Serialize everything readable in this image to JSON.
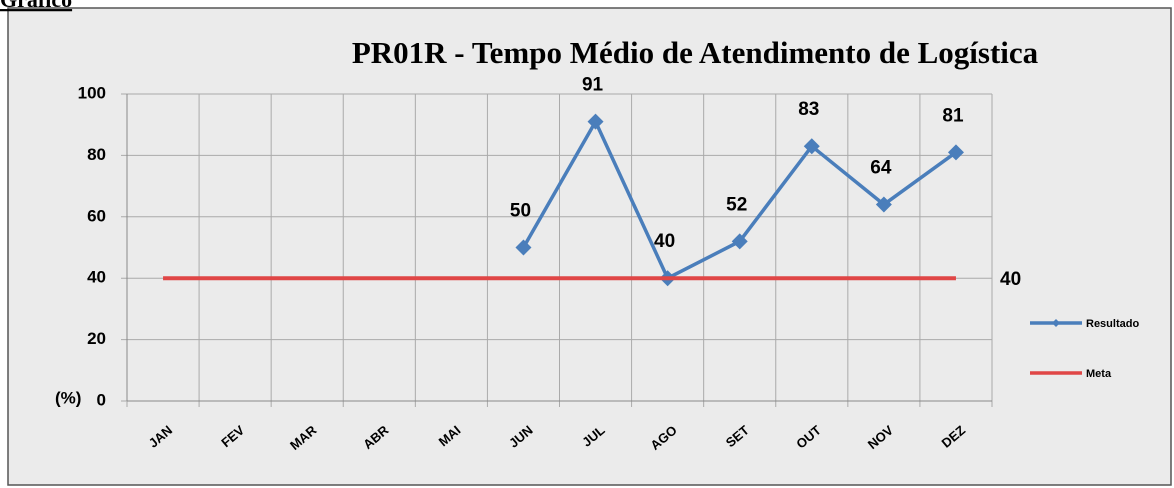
{
  "page_label": "Gráfico",
  "chart_data": {
    "type": "line",
    "title": "PR01R - Tempo Médio  de Atendimento de Logística",
    "y_label": "(%)",
    "categories": [
      "JAN",
      "FEV",
      "MAR",
      "ABR",
      "MAI",
      "JUN",
      "JUL",
      "AGO",
      "SET",
      "OUT",
      "NOV",
      "DEZ"
    ],
    "series": [
      {
        "name": "Resultado",
        "color": "#4a7ebb",
        "values": [
          null,
          null,
          null,
          null,
          null,
          50,
          91,
          40,
          52,
          83,
          64,
          81
        ]
      },
      {
        "name": "Meta",
        "color": "#e04646",
        "values": [
          40,
          40,
          40,
          40,
          40,
          40,
          40,
          40,
          40,
          40,
          40,
          40
        ]
      }
    ],
    "ylim": [
      0,
      100
    ],
    "yticks": [
      0,
      20,
      40,
      60,
      80,
      100
    ],
    "grid": true,
    "legend": "right"
  }
}
